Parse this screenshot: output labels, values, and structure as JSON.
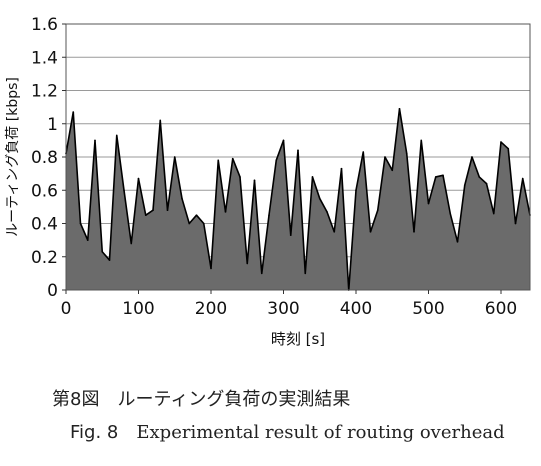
{
  "chart_data": {
    "type": "area",
    "xlabel": "時刻 [s]",
    "ylabel": "ルーティング負荷 [kbps]",
    "xlim": [
      0,
      640
    ],
    "ylim": [
      0,
      1.6
    ],
    "xticks": [
      "0",
      "100",
      "200",
      "300",
      "400",
      "500",
      "600"
    ],
    "yticks": [
      "0",
      "0.2",
      "0.4",
      "0.6",
      "0.8",
      "1",
      "1.2",
      "1.4",
      "1.6"
    ],
    "grid": "horizontal",
    "series": [
      {
        "x": [
          0,
          10,
          20,
          30,
          40,
          50,
          60,
          70,
          80,
          90,
          100,
          110,
          120,
          130,
          140,
          150,
          160,
          170,
          180,
          190,
          200,
          210,
          220,
          230,
          240,
          250,
          260,
          270,
          280,
          290,
          300,
          310,
          320,
          330,
          340,
          350,
          360,
          370,
          380,
          390,
          400,
          410,
          420,
          430,
          440,
          450,
          460,
          470,
          480,
          490,
          500,
          510,
          520,
          530,
          540,
          550,
          560,
          570,
          580,
          590,
          600,
          610,
          620,
          630,
          640
        ],
        "values": [
          0.82,
          1.07,
          0.4,
          0.3,
          0.9,
          0.23,
          0.18,
          0.93,
          0.6,
          0.28,
          0.67,
          0.45,
          0.48,
          1.02,
          0.48,
          0.8,
          0.55,
          0.4,
          0.45,
          0.4,
          0.13,
          0.78,
          0.47,
          0.79,
          0.68,
          0.16,
          0.66,
          0.1,
          0.45,
          0.78,
          0.9,
          0.33,
          0.84,
          0.1,
          0.68,
          0.55,
          0.47,
          0.35,
          0.73,
          0.0,
          0.6,
          0.83,
          0.35,
          0.48,
          0.8,
          0.72,
          1.09,
          0.82,
          0.35,
          0.9,
          0.52,
          0.68,
          0.69,
          0.46,
          0.29,
          0.63,
          0.8,
          0.68,
          0.64,
          0.46,
          0.89,
          0.85,
          0.4,
          0.67,
          0.45
        ]
      }
    ],
    "fill_color": "#6b6b6b",
    "line_color": "#000000"
  },
  "caption": {
    "line1": "第8図　ルーティング負荷の実測結果",
    "fig_label": "Fig. 8",
    "fig_text": "Experimental result of routing overhead"
  }
}
